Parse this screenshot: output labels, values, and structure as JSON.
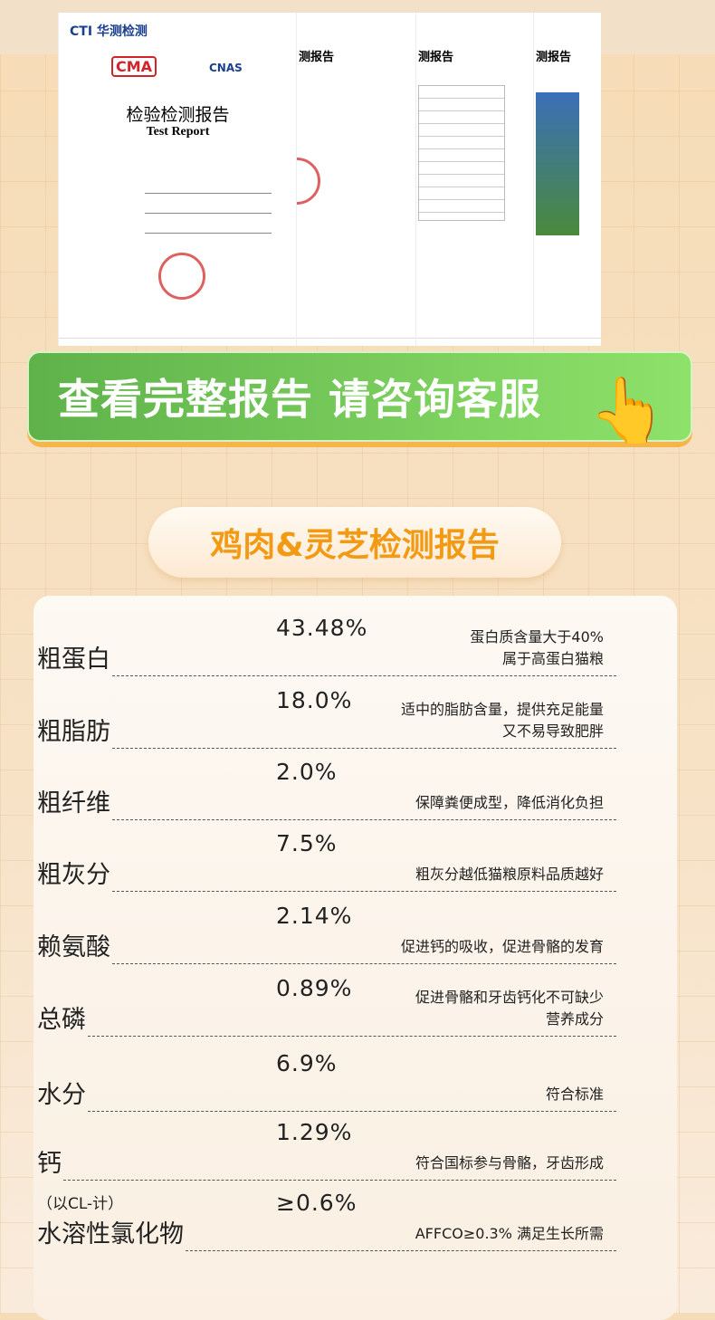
{
  "reports": {
    "logo": "CTI 华测检测",
    "ma": "CMA",
    "cnas": "CNAS",
    "title_cn": "检验检测报告",
    "title_en": "Test Report",
    "page_header": "测报告"
  },
  "cta": {
    "label": "查看完整报告 请咨询客服",
    "icon": "hand-pointer-icon"
  },
  "section_title": "鸡肉&灵芝检测报告",
  "rows": [
    {
      "label": "粗蛋白",
      "value": "43.48%",
      "note": [
        "蛋白质含量大于40%",
        "属于高蛋白猫粮"
      ]
    },
    {
      "label": "粗脂肪",
      "value": "18.0%",
      "note": [
        "适中的脂肪含量，提供充足能量",
        "又不易导致肥胖"
      ]
    },
    {
      "label": "粗纤维",
      "value": "2.0%",
      "note": [
        "保障粪便成型，降低消化负担"
      ]
    },
    {
      "label": "粗灰分",
      "value": "7.5%",
      "note": [
        "粗灰分越低猫粮原料品质越好"
      ]
    },
    {
      "label": "赖氨酸",
      "value": "2.14%",
      "note": [
        "促进钙的吸收，促进骨骼的发育"
      ]
    },
    {
      "label": "总磷",
      "value": "0.89%",
      "note": [
        "促进骨骼和牙齿钙化不可缺少",
        "营养成分"
      ]
    },
    {
      "label": "水分",
      "value": "6.9%",
      "note": [
        "符合标准"
      ]
    },
    {
      "label": "钙",
      "value": "1.29%",
      "note": [
        "符合国标参与骨骼，牙齿形成"
      ]
    },
    {
      "label": "水溶性氯化物",
      "sublabel": "（以CL-计）",
      "value": "≥0.6%",
      "note": [
        "AFFCO≥0.3% 满足生长所需"
      ]
    }
  ],
  "colors": {
    "accent": "#f29a14",
    "button": "#6cc050"
  }
}
